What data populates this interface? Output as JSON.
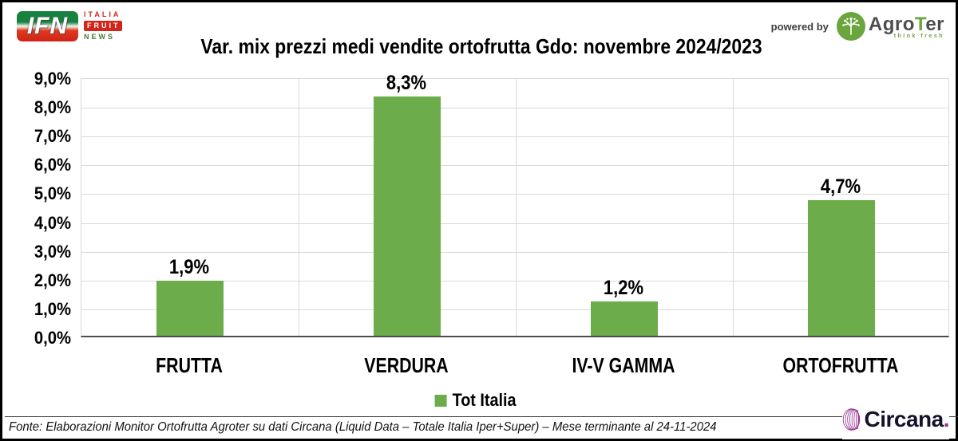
{
  "header": {
    "ifn_logo": {
      "acronym": "IFN",
      "line1": "ITALIA",
      "line2": "FRUIT",
      "line3": "NEWS"
    },
    "title": "Var. mix prezzi medi vendite ortofrutta Gdo: novembre 2024/2023",
    "powered_by": "powered by",
    "agroter": {
      "name_prefix": "Agro",
      "name_t": "T",
      "name_suffix": "er",
      "tagline": "think fresh"
    }
  },
  "chart_data": {
    "type": "bar",
    "title": "Var. mix prezzi medi vendite ortofrutta Gdo: novembre 2024/2023",
    "categories": [
      "FRUTTA",
      "VERDURA",
      "IV-V GAMMA",
      "ORTOFRUTTA"
    ],
    "values": [
      1.9,
      8.3,
      1.2,
      4.7
    ],
    "value_labels": [
      "1,9%",
      "8,3%",
      "1,2%",
      "4,7%"
    ],
    "series_name": "Tot Italia",
    "ylim": [
      0,
      9
    ],
    "ytick_step": 1,
    "ytick_labels": [
      "0,0%",
      "1,0%",
      "2,0%",
      "3,0%",
      "4,0%",
      "5,0%",
      "6,0%",
      "7,0%",
      "8,0%",
      "9,0%"
    ],
    "grid": true,
    "legend_position": "bottom",
    "bar_color": "#6cac4a"
  },
  "legend": {
    "label": "Tot Italia",
    "swatch_color": "#6cac4a"
  },
  "footer": {
    "source": "Fonte: Elaborazioni Monitor Ortofrutta Agroter su dati Circana (Liquid Data – Totale Italia Iper+Super) – Mese terminante al 24-11-2024",
    "circana_name": "Circana",
    "circana_dot": "."
  },
  "colors": {
    "bar_green": "#6cac4a",
    "gridline": "#d9d9d9",
    "axis": "#4d4d4d",
    "ifn_red": "#d3261a",
    "ifn_green": "#17823f",
    "agroter_green": "#6aa53e",
    "circana_purple": "#a12b93",
    "circana_navy": "#17112b"
  }
}
